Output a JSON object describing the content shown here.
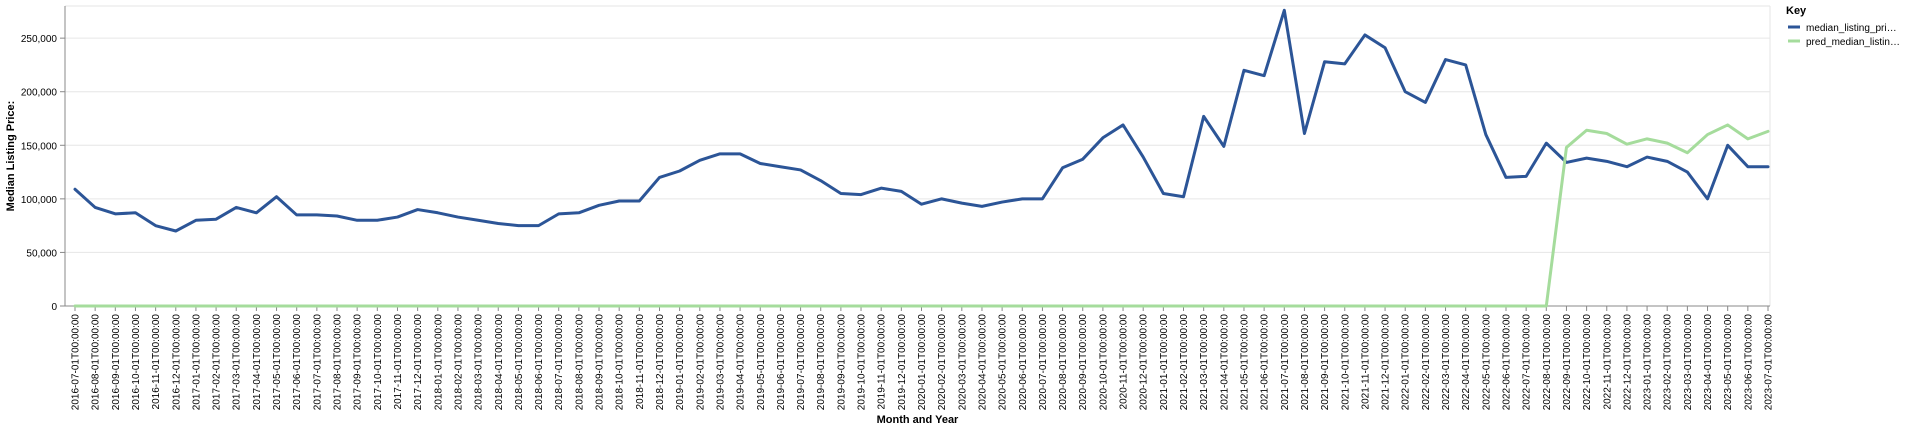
{
  "chart_data": {
    "type": "line",
    "xlabel": "Month and Year",
    "ylabel": "Median Listing Price:",
    "ylim": [
      0,
      280000
    ],
    "yticks": [
      0,
      50000,
      100000,
      150000,
      200000,
      250000
    ],
    "ytick_labels": [
      "0",
      "50,000",
      "100,000",
      "150,000",
      "200,000",
      "250,000"
    ],
    "grid": true,
    "legend": {
      "title": "Key",
      "placement": "top-right"
    },
    "x": [
      "2016-07-01T00:00:00",
      "2016-08-01T00:00:00",
      "2016-09-01T00:00:00",
      "2016-10-01T00:00:00",
      "2016-11-01T00:00:00",
      "2016-12-01T00:00:00",
      "2017-01-01T00:00:00",
      "2017-02-01T00:00:00",
      "2017-03-01T00:00:00",
      "2017-04-01T00:00:00",
      "2017-05-01T00:00:00",
      "2017-06-01T00:00:00",
      "2017-07-01T00:00:00",
      "2017-08-01T00:00:00",
      "2017-09-01T00:00:00",
      "2017-10-01T00:00:00",
      "2017-11-01T00:00:00",
      "2017-12-01T00:00:00",
      "2018-01-01T00:00:00",
      "2018-02-01T00:00:00",
      "2018-03-01T00:00:00",
      "2018-04-01T00:00:00",
      "2018-05-01T00:00:00",
      "2018-06-01T00:00:00",
      "2018-07-01T00:00:00",
      "2018-08-01T00:00:00",
      "2018-09-01T00:00:00",
      "2018-10-01T00:00:00",
      "2018-11-01T00:00:00",
      "2018-12-01T00:00:00",
      "2019-01-01T00:00:00",
      "2019-02-01T00:00:00",
      "2019-03-01T00:00:00",
      "2019-04-01T00:00:00",
      "2019-05-01T00:00:00",
      "2019-06-01T00:00:00",
      "2019-07-01T00:00:00",
      "2019-08-01T00:00:00",
      "2019-09-01T00:00:00",
      "2019-10-01T00:00:00",
      "2019-11-01T00:00:00",
      "2019-12-01T00:00:00",
      "2020-01-01T00:00:00",
      "2020-02-01T00:00:00",
      "2020-03-01T00:00:00",
      "2020-04-01T00:00:00",
      "2020-05-01T00:00:00",
      "2020-06-01T00:00:00",
      "2020-07-01T00:00:00",
      "2020-08-01T00:00:00",
      "2020-09-01T00:00:00",
      "2020-10-01T00:00:00",
      "2020-11-01T00:00:00",
      "2020-12-01T00:00:00",
      "2021-01-01T00:00:00",
      "2021-02-01T00:00:00",
      "2021-03-01T00:00:00",
      "2021-04-01T00:00:00",
      "2021-05-01T00:00:00",
      "2021-06-01T00:00:00",
      "2021-07-01T00:00:00",
      "2021-08-01T00:00:00",
      "2021-09-01T00:00:00",
      "2021-10-01T00:00:00",
      "2021-11-01T00:00:00",
      "2021-12-01T00:00:00",
      "2022-01-01T00:00:00",
      "2022-02-01T00:00:00",
      "2022-03-01T00:00:00",
      "2022-04-01T00:00:00",
      "2022-05-01T00:00:00",
      "2022-06-01T00:00:00",
      "2022-07-01T00:00:00",
      "2022-08-01T00:00:00",
      "2022-09-01T00:00:00",
      "2022-10-01T00:00:00",
      "2022-11-01T00:00:00",
      "2022-12-01T00:00:00",
      "2023-01-01T00:00:00",
      "2023-02-01T00:00:00",
      "2023-03-01T00:00:00",
      "2023-04-01T00:00:00",
      "2023-05-01T00:00:00",
      "2023-06-01T00:00:00",
      "2023-07-01T00:00:00"
    ],
    "series": [
      {
        "name": "median_listing_pri…",
        "color": "#2c5597",
        "values": [
          109000,
          92000,
          86000,
          87000,
          75000,
          70000,
          80000,
          81000,
          92000,
          87000,
          102000,
          85000,
          85000,
          84000,
          80000,
          80000,
          83000,
          90000,
          87000,
          83000,
          80000,
          77000,
          75000,
          75000,
          86000,
          87000,
          94000,
          98000,
          98000,
          120000,
          126000,
          136000,
          142000,
          142000,
          133000,
          130000,
          127000,
          117000,
          105000,
          104000,
          110000,
          107000,
          95000,
          100000,
          96000,
          93000,
          97000,
          100000,
          100000,
          129000,
          137000,
          157000,
          169000,
          139000,
          105000,
          102000,
          177000,
          149000,
          220000,
          215000,
          276000,
          161000,
          228000,
          226000,
          253000,
          241000,
          200000,
          190000,
          230000,
          225000,
          160000,
          120000,
          121000,
          152000,
          134000,
          138000,
          135000,
          130000,
          139000,
          135000,
          125000,
          100000,
          150000,
          130000,
          130000
        ]
      },
      {
        "name": "pred_median_listin…",
        "color": "#a5dc9c",
        "values": [
          0,
          0,
          0,
          0,
          0,
          0,
          0,
          0,
          0,
          0,
          0,
          0,
          0,
          0,
          0,
          0,
          0,
          0,
          0,
          0,
          0,
          0,
          0,
          0,
          0,
          0,
          0,
          0,
          0,
          0,
          0,
          0,
          0,
          0,
          0,
          0,
          0,
          0,
          0,
          0,
          0,
          0,
          0,
          0,
          0,
          0,
          0,
          0,
          0,
          0,
          0,
          0,
          0,
          0,
          0,
          0,
          0,
          0,
          0,
          0,
          0,
          0,
          0,
          0,
          0,
          0,
          0,
          0,
          0,
          0,
          0,
          0,
          0,
          0,
          148000,
          164000,
          161000,
          151000,
          156000,
          152000,
          143000,
          160000,
          169000,
          156000,
          163000
        ]
      }
    ]
  }
}
